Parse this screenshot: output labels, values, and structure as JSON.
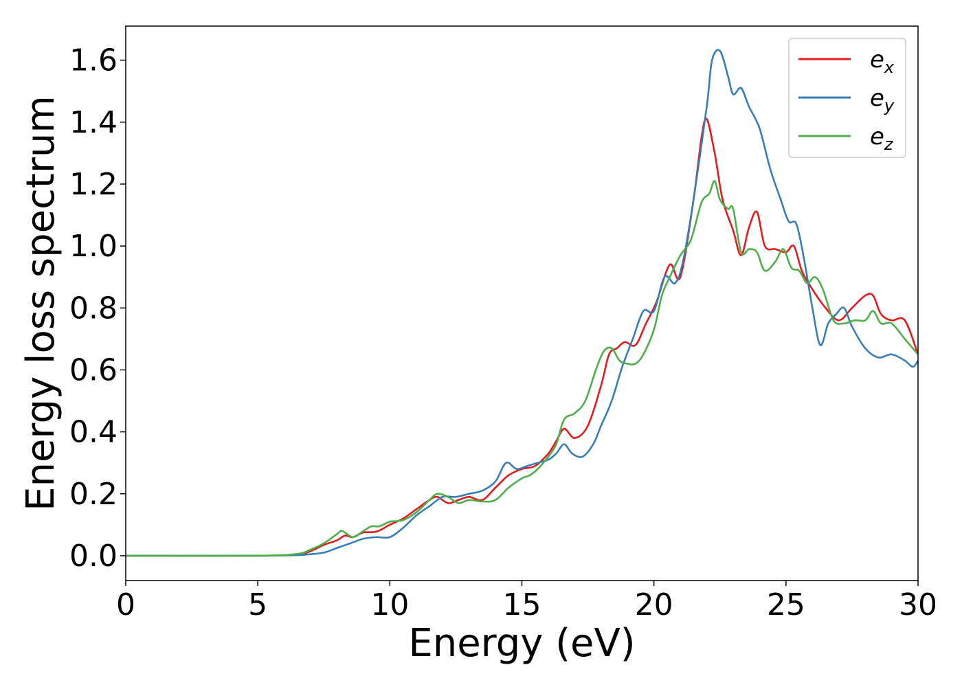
{
  "chart_data": {
    "type": "line",
    "xlabel": "Energy (eV)",
    "ylabel": "Energy loss spectrum",
    "xlim": [
      0,
      30
    ],
    "ylim": [
      -0.08,
      1.71
    ],
    "xticks": [
      0,
      5,
      10,
      15,
      20,
      25,
      30
    ],
    "xtick_labels": [
      "0",
      "5",
      "10",
      "15",
      "20",
      "25",
      "30"
    ],
    "yticks": [
      0.0,
      0.2,
      0.4,
      0.6,
      0.8,
      1.0,
      1.2,
      1.4,
      1.6
    ],
    "ytick_labels": [
      "0.0",
      "0.2",
      "0.4",
      "0.6",
      "0.8",
      "1.0",
      "1.2",
      "1.4",
      "1.6"
    ],
    "grid": false,
    "legend_position": "top-right",
    "series": [
      {
        "name": "e",
        "subscript": "x",
        "color": "#e41a1c",
        "x": [
          0,
          5,
          6.5,
          7,
          7.5,
          8,
          8.3,
          8.6,
          9,
          9.5,
          10,
          10.5,
          11,
          11.5,
          11.8,
          12.2,
          12.6,
          13,
          13.5,
          14,
          14.5,
          15,
          15.5,
          16,
          16.3,
          16.6,
          17,
          17.5,
          18,
          18.3,
          18.6,
          18.9,
          19.3,
          19.7,
          20.1,
          20.6,
          21,
          21.5,
          21.8,
          22,
          22.3,
          22.6,
          23,
          23.3,
          23.6,
          23.9,
          24.2,
          24.6,
          25,
          25.3,
          25.6,
          26,
          26.5,
          27,
          27.5,
          28,
          28.3,
          28.6,
          29,
          29.5,
          30
        ],
        "y": [
          0.0,
          0.0,
          0.005,
          0.015,
          0.035,
          0.05,
          0.065,
          0.06,
          0.075,
          0.078,
          0.1,
          0.12,
          0.15,
          0.18,
          0.19,
          0.17,
          0.18,
          0.19,
          0.18,
          0.22,
          0.26,
          0.28,
          0.29,
          0.33,
          0.37,
          0.41,
          0.38,
          0.42,
          0.55,
          0.65,
          0.67,
          0.69,
          0.68,
          0.75,
          0.82,
          0.94,
          0.9,
          1.15,
          1.35,
          1.41,
          1.3,
          1.15,
          1.05,
          0.97,
          1.06,
          1.11,
          1.0,
          0.99,
          0.98,
          1.0,
          0.92,
          0.86,
          0.8,
          0.76,
          0.8,
          0.84,
          0.84,
          0.78,
          0.76,
          0.76,
          0.65
        ]
      },
      {
        "name": "e",
        "subscript": "y",
        "color": "#377eb8",
        "x": [
          0,
          5,
          6.5,
          7,
          7.5,
          8,
          8.5,
          9,
          9.5,
          10,
          10.5,
          11,
          11.5,
          12,
          12.5,
          13,
          13.5,
          14,
          14.4,
          14.8,
          15.2,
          15.6,
          16,
          16.3,
          16.6,
          16.9,
          17.3,
          17.7,
          18,
          18.4,
          18.8,
          19.2,
          19.6,
          20,
          20.4,
          20.8,
          21.1,
          21.5,
          22,
          22.2,
          22.5,
          22.8,
          23,
          23.3,
          23.6,
          24,
          24.4,
          24.8,
          25.1,
          25.4,
          25.7,
          26,
          26.3,
          26.6,
          26.9,
          27.2,
          27.5,
          28,
          28.5,
          29,
          29.5,
          29.8,
          30
        ],
        "y": [
          0.0,
          0.0,
          0.002,
          0.005,
          0.01,
          0.025,
          0.04,
          0.055,
          0.06,
          0.06,
          0.09,
          0.13,
          0.16,
          0.19,
          0.19,
          0.2,
          0.21,
          0.24,
          0.3,
          0.28,
          0.29,
          0.3,
          0.31,
          0.33,
          0.36,
          0.33,
          0.32,
          0.36,
          0.42,
          0.5,
          0.61,
          0.7,
          0.79,
          0.79,
          0.9,
          0.88,
          0.95,
          1.15,
          1.45,
          1.6,
          1.63,
          1.55,
          1.49,
          1.51,
          1.45,
          1.38,
          1.25,
          1.15,
          1.08,
          1.07,
          0.95,
          0.8,
          0.68,
          0.75,
          0.78,
          0.8,
          0.74,
          0.67,
          0.64,
          0.65,
          0.63,
          0.61,
          0.63
        ]
      },
      {
        "name": "e",
        "subscript": "z",
        "color": "#4daf4a",
        "x": [
          0,
          5,
          6.5,
          7,
          7.5,
          8,
          8.2,
          8.6,
          9,
          9.3,
          9.6,
          10,
          10.5,
          11,
          11.5,
          11.8,
          12.2,
          12.6,
          13,
          13.5,
          14,
          14.5,
          15,
          15.3,
          15.6,
          16,
          16.3,
          16.6,
          17,
          17.4,
          17.8,
          18.1,
          18.4,
          18.7,
          19,
          19.3,
          19.6,
          20,
          20.3,
          20.6,
          21,
          21.4,
          21.8,
          22.1,
          22.3,
          22.5,
          22.8,
          23,
          23.3,
          23.6,
          23.9,
          24.2,
          24.6,
          24.9,
          25.2,
          25.5,
          25.8,
          26.1,
          26.4,
          26.8,
          27.2,
          27.6,
          28,
          28.3,
          28.6,
          29,
          29.5,
          30
        ],
        "y": [
          0.0,
          0.0,
          0.006,
          0.02,
          0.04,
          0.07,
          0.08,
          0.06,
          0.08,
          0.095,
          0.095,
          0.11,
          0.115,
          0.14,
          0.18,
          0.2,
          0.19,
          0.17,
          0.18,
          0.175,
          0.18,
          0.22,
          0.25,
          0.26,
          0.28,
          0.32,
          0.36,
          0.44,
          0.46,
          0.5,
          0.6,
          0.66,
          0.67,
          0.63,
          0.62,
          0.62,
          0.65,
          0.73,
          0.84,
          0.9,
          0.97,
          1.02,
          1.14,
          1.17,
          1.21,
          1.15,
          1.12,
          1.12,
          0.98,
          0.99,
          0.98,
          0.92,
          0.95,
          0.99,
          0.93,
          0.92,
          0.88,
          0.9,
          0.86,
          0.76,
          0.75,
          0.76,
          0.76,
          0.79,
          0.75,
          0.75,
          0.7,
          0.65
        ]
      }
    ]
  }
}
